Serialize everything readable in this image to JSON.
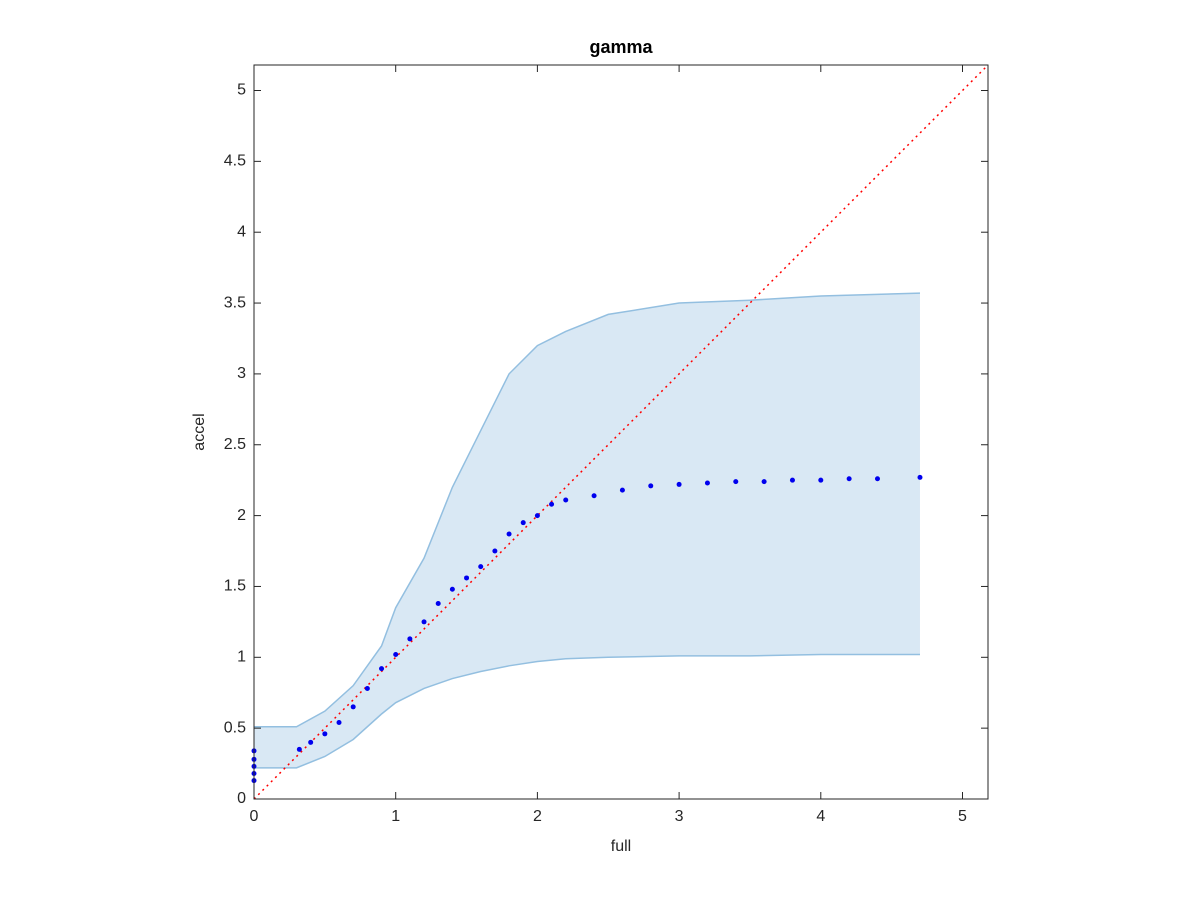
{
  "chart_data": {
    "type": "scatter",
    "title": "gamma",
    "x_label": "full",
    "y_label": "accel",
    "xlim": [
      0,
      5.18
    ],
    "ylim": [
      0,
      5.18
    ],
    "xticks": [
      0,
      1,
      2,
      3,
      4,
      5
    ],
    "yticks": [
      0,
      0.5,
      1,
      1.5,
      2,
      2.5,
      3,
      3.5,
      4,
      4.5,
      5
    ],
    "grid": false,
    "band": {
      "color": "#d9e8f4",
      "edge_color": "#93bfe0",
      "x": [
        0,
        0.3,
        0.5,
        0.7,
        0.9,
        1.0,
        1.2,
        1.4,
        1.6,
        1.8,
        2.0,
        2.2,
        2.5,
        3.0,
        3.5,
        4.0,
        4.7
      ],
      "upper": [
        0.51,
        0.51,
        0.62,
        0.8,
        1.08,
        1.35,
        1.7,
        2.2,
        2.6,
        3.0,
        3.2,
        3.3,
        3.42,
        3.5,
        3.52,
        3.55,
        3.57
      ],
      "lower": [
        0.22,
        0.22,
        0.3,
        0.42,
        0.6,
        0.68,
        0.78,
        0.85,
        0.9,
        0.94,
        0.97,
        0.99,
        1.0,
        1.01,
        1.01,
        1.02,
        1.02
      ]
    },
    "reference_line": {
      "color": "#ff0000",
      "x": [
        0,
        5.18
      ],
      "y": [
        0,
        5.18
      ]
    },
    "series": [
      {
        "color": "#0000ee",
        "x": [
          0,
          0,
          0,
          0,
          0,
          0.32,
          0.4,
          0.5,
          0.6,
          0.7,
          0.8,
          0.9,
          1.0,
          1.1,
          1.2,
          1.3,
          1.4,
          1.5,
          1.6,
          1.7,
          1.8,
          1.9,
          2.0,
          2.1,
          2.2,
          2.4,
          2.6,
          2.8,
          3.0,
          3.2,
          3.4,
          3.6,
          3.8,
          4.0,
          4.2,
          4.4,
          4.7
        ],
        "values": [
          0.13,
          0.18,
          0.23,
          0.28,
          0.34,
          0.35,
          0.4,
          0.46,
          0.54,
          0.65,
          0.78,
          0.92,
          1.02,
          1.13,
          1.25,
          1.38,
          1.48,
          1.56,
          1.64,
          1.75,
          1.87,
          1.95,
          2.0,
          2.08,
          2.11,
          2.14,
          2.18,
          2.21,
          2.22,
          2.23,
          2.24,
          2.24,
          2.25,
          2.25,
          2.26,
          2.26,
          2.27
        ]
      }
    ]
  }
}
